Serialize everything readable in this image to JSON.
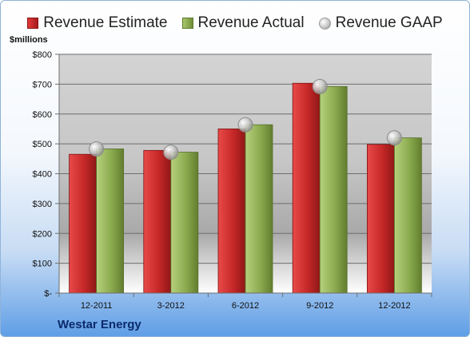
{
  "legend": {
    "estimate": "Revenue Estimate",
    "actual": "Revenue Actual",
    "gaap": "Revenue GAAP"
  },
  "unit_label": "$millions",
  "company": "Westar Energy",
  "colors": {
    "estimate": "#c62828",
    "actual": "#8bab4f",
    "gaap": "#bdbdbd"
  },
  "chart_data": {
    "type": "bar",
    "categories": [
      "12-2011",
      "3-2012",
      "6-2012",
      "9-2012",
      "12-2012"
    ],
    "series": [
      {
        "name": "Revenue Estimate",
        "values": [
          465,
          478,
          550,
          703,
          498
        ]
      },
      {
        "name": "Revenue Actual",
        "values": [
          483,
          472,
          564,
          692,
          520
        ]
      },
      {
        "name": "Revenue GAAP",
        "type": "scatter",
        "values": [
          483,
          472,
          564,
          692,
          520
        ]
      }
    ],
    "ylabel": "$millions",
    "ylim": [
      0,
      800
    ],
    "yticks": [
      0,
      100,
      200,
      300,
      400,
      500,
      600,
      700,
      800
    ],
    "ytick_labels": [
      "$-",
      "$100",
      "$200",
      "$300",
      "$400",
      "$500",
      "$600",
      "$700",
      "$800"
    ],
    "grid": true,
    "legend_position": "top"
  }
}
